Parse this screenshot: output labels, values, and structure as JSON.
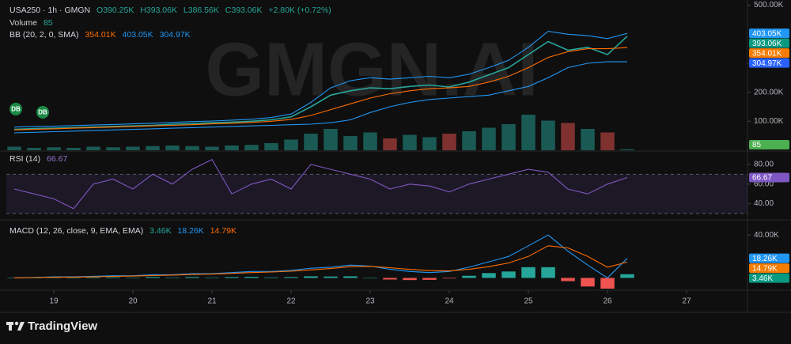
{
  "chart_data": [
    {
      "type": "line",
      "title": "USA250 · 1h · GMGN",
      "ohlc": [
        "O390.25K",
        "H393.06K",
        "L386.56K",
        "C393.06K",
        "+2.80K (+0.72%)"
      ],
      "volume_title": "Volume",
      "indicator": "BB (20, 2, 0, SMA)",
      "watermark": "GMGN.AI",
      "annotations": [
        {
          "text": "DB",
          "x": 18.52,
          "y": 142000
        },
        {
          "text": "DB",
          "x": 18.86,
          "y": 131000
        }
      ],
      "x": [
        18.5,
        18.75,
        19,
        19.25,
        19.5,
        19.75,
        20,
        20.25,
        20.5,
        20.75,
        21,
        21.25,
        21.5,
        21.75,
        22,
        22.25,
        22.5,
        22.75,
        23,
        23.25,
        23.5,
        23.75,
        24,
        24.25,
        24.5,
        24.75,
        25,
        25.25,
        25.5,
        25.75,
        26,
        26.25
      ],
      "xlim": [
        18.4,
        27.77
      ],
      "ylim": [
        0,
        518000
      ],
      "yticks": [
        {
          "value": 100000,
          "label": "100.00K"
        },
        {
          "value": 200000,
          "label": "200.00K"
        },
        {
          "value": 300000,
          "label": "300.00K"
        },
        {
          "value": 500000,
          "label": "500.00K"
        }
      ],
      "grid": false,
      "series": [
        {
          "color": "#26a69a",
          "values": [
            72000,
            75000,
            76000,
            78000,
            80000,
            82000,
            84000,
            86000,
            90000,
            92000,
            95000,
            97000,
            100000,
            105000,
            115000,
            150000,
            190000,
            205000,
            215000,
            212000,
            220000,
            225000,
            218000,
            235000,
            260000,
            285000,
            330000,
            375000,
            345000,
            355000,
            330000,
            393060
          ]
        },
        {
          "color": "#2196f3",
          "values": [
            80000,
            82000,
            83000,
            85000,
            87000,
            89000,
            91000,
            93000,
            96000,
            99000,
            101000,
            104000,
            107000,
            113000,
            125000,
            165000,
            215000,
            240000,
            250000,
            245000,
            250000,
            255000,
            250000,
            262000,
            285000,
            310000,
            355000,
            410000,
            400000,
            395000,
            385000,
            403050
          ]
        },
        {
          "color": "#ff6d00",
          "values": [
            70000,
            72000,
            74000,
            76000,
            78000,
            80000,
            82000,
            84000,
            86000,
            88000,
            91000,
            93000,
            96000,
            100000,
            106000,
            120000,
            140000,
            160000,
            180000,
            195000,
            205000,
            212000,
            215000,
            220000,
            235000,
            255000,
            285000,
            320000,
            340000,
            350000,
            350000,
            354010
          ]
        },
        {
          "color": "#2196f3",
          "values": [
            60000,
            62000,
            64000,
            66000,
            68000,
            70000,
            72000,
            74000,
            76000,
            78000,
            80000,
            82000,
            84000,
            86000,
            88000,
            90000,
            95000,
            105000,
            130000,
            150000,
            165000,
            175000,
            180000,
            185000,
            190000,
            205000,
            220000,
            250000,
            285000,
            300000,
            305000,
            304970
          ]
        }
      ],
      "volume": [
        300,
        200,
        250,
        200,
        300,
        250,
        300,
        350,
        400,
        350,
        300,
        400,
        450,
        600,
        900,
        1400,
        1800,
        1200,
        1500,
        1000,
        1300,
        1100,
        1400,
        1600,
        1900,
        2200,
        3000,
        2500,
        2300,
        1800,
        1500,
        85
      ],
      "volume_color": "#4caf50",
      "badges": [
        {
          "value": 403050,
          "label": "403.05K",
          "color": "#2196f3"
        },
        {
          "value": 393060,
          "label": "393.06K",
          "color": "#089981"
        },
        {
          "value": 354010,
          "label": "354.01K",
          "color": "#f57c00"
        },
        {
          "value": 304970,
          "label": "304.97K",
          "color": "#2962ff"
        }
      ]
    },
    {
      "type": "line",
      "title": "RSI (14)",
      "x": [
        18.5,
        18.75,
        19,
        19.25,
        19.5,
        19.75,
        20,
        20.25,
        20.5,
        20.75,
        21,
        21.25,
        21.5,
        21.75,
        22,
        22.25,
        22.5,
        22.75,
        23,
        23.25,
        23.5,
        23.75,
        24,
        24.25,
        24.5,
        24.75,
        25,
        25.25,
        25.5,
        25.75,
        26,
        26.25
      ],
      "xlim": [
        18.4,
        27.77
      ],
      "ylim": [
        26,
        92
      ],
      "yticks": [
        {
          "value": 40,
          "label": "40.00"
        },
        {
          "value": 60,
          "label": "60.00"
        },
        {
          "value": 80,
          "label": "80.00"
        }
      ],
      "bands": [
        30,
        70
      ],
      "series": [
        {
          "color": "#7e57c2",
          "values": [
            55,
            50,
            45,
            35,
            60,
            65,
            55,
            70,
            60,
            75,
            85,
            50,
            60,
            65,
            55,
            80,
            75,
            70,
            65,
            55,
            60,
            58,
            52,
            60,
            65,
            70,
            75,
            72,
            55,
            50,
            60,
            66.67
          ]
        }
      ],
      "badge_color": "#7e57c2"
    },
    {
      "type": "macd",
      "title": "MACD (12, 26, close, 9, EMA, EMA)",
      "x": [
        18.5,
        18.75,
        19,
        19.25,
        19.5,
        19.75,
        20,
        20.25,
        20.5,
        20.75,
        21,
        21.25,
        21.5,
        21.75,
        22,
        22.25,
        22.5,
        22.75,
        23,
        23.25,
        23.5,
        23.75,
        24,
        24.25,
        24.5,
        24.75,
        25,
        25.25,
        25.5,
        25.75,
        26,
        26.25
      ],
      "xlim": [
        18.4,
        27.77
      ],
      "ylim": [
        -10000,
        49000
      ],
      "yticks": [
        {
          "value": 40000,
          "label": "40.00K"
        }
      ],
      "xticks": [
        19,
        20,
        21,
        22,
        23,
        24,
        25,
        26,
        27
      ],
      "series": [
        {
          "color": "#2196f3",
          "values": [
            0,
            500,
            1000,
            1000,
            1500,
            2000,
            2000,
            3000,
            3000,
            4000,
            4000,
            5000,
            6000,
            6000,
            7000,
            9000,
            10000,
            12000,
            11000,
            8000,
            6000,
            5000,
            6000,
            10000,
            15000,
            20000,
            30000,
            40000,
            25000,
            12000,
            0,
            18260
          ]
        },
        {
          "color": "#ff6d00",
          "values": [
            0,
            300,
            600,
            800,
            1000,
            1400,
            1700,
            2200,
            2600,
            3200,
            3600,
            4200,
            5000,
            5500,
            6200,
            7500,
            8700,
            10500,
            10800,
            9500,
            8000,
            6800,
            6500,
            8000,
            10500,
            14000,
            20000,
            30000,
            28000,
            20000,
            10000,
            14790
          ]
        }
      ],
      "histogram": [
        0,
        200,
        400,
        200,
        500,
        600,
        300,
        800,
        400,
        800,
        400,
        800,
        1000,
        500,
        800,
        1500,
        1300,
        1500,
        200,
        -1500,
        -2000,
        -1800,
        -500,
        2000,
        4500,
        6000,
        10000,
        10000,
        -3000,
        -8000,
        -10000,
        3460
      ],
      "badges": [
        {
          "value": 18260,
          "label": "18.26K",
          "color": "#2196f3"
        },
        {
          "value": 14790,
          "label": "14.79K",
          "color": "#f57c00"
        },
        {
          "value": 3460,
          "label": "3.46K",
          "color": "#089981"
        }
      ]
    }
  ],
  "footer": {
    "brand": "TradingView"
  }
}
